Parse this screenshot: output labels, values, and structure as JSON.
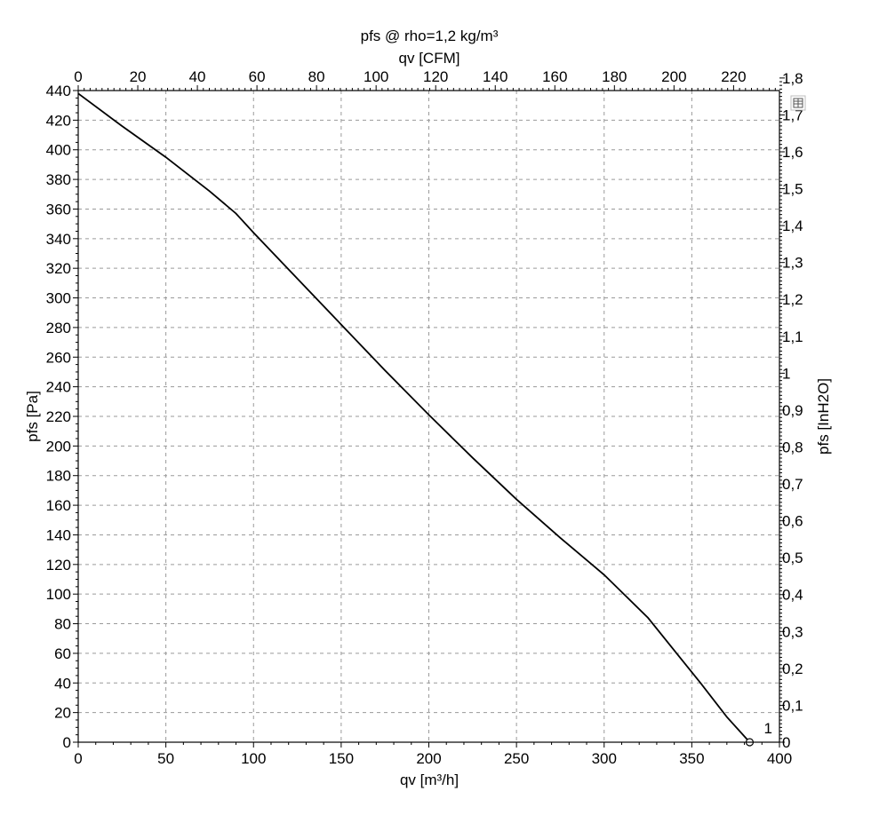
{
  "chart_data": {
    "type": "line",
    "title": "pfs @ rho=1,2 kg/m³",
    "xlabel": "qv [m³/h]",
    "ylabel": "pfs [Pa]",
    "x2label": "qv [CFM]",
    "y2label": "pfs [InH2O]",
    "xlim": [
      0,
      400
    ],
    "ylim": [
      0,
      440
    ],
    "x2lim": [
      0,
      235.4
    ],
    "y2lim": [
      0,
      1.766
    ],
    "x_ticks": [
      0,
      50,
      100,
      150,
      200,
      250,
      300,
      350,
      400
    ],
    "y_ticks": [
      0,
      20,
      40,
      60,
      80,
      100,
      120,
      140,
      160,
      180,
      200,
      220,
      240,
      260,
      280,
      300,
      320,
      340,
      360,
      380,
      400,
      420,
      440
    ],
    "x2_ticks": [
      0,
      20,
      40,
      60,
      80,
      100,
      120,
      140,
      160,
      180,
      200,
      220
    ],
    "y2_ticks": [
      "0",
      "0,1",
      "0,2",
      "0,3",
      "0,4",
      "0,5",
      "0,6",
      "0,7",
      "0,8",
      "0,9",
      "1",
      "1,1",
      "1,2",
      "1,3",
      "1,4",
      "1,5",
      "1,6",
      "1,7",
      "1,8"
    ],
    "grid": true,
    "series": [
      {
        "x": [
          0,
          25,
          50,
          75,
          90,
          100,
          125,
          150,
          175,
          200,
          225,
          250,
          275,
          300,
          325,
          340,
          355,
          370,
          383
        ],
        "y": [
          438,
          416,
          395,
          372,
          357,
          344,
          313,
          282,
          251,
          221,
          192,
          164,
          138,
          113,
          84,
          62,
          40,
          17,
          0
        ]
      }
    ],
    "annotations": [
      {
        "text": "1",
        "x": 383,
        "y": 0
      }
    ],
    "icon": "grid-table-icon"
  }
}
